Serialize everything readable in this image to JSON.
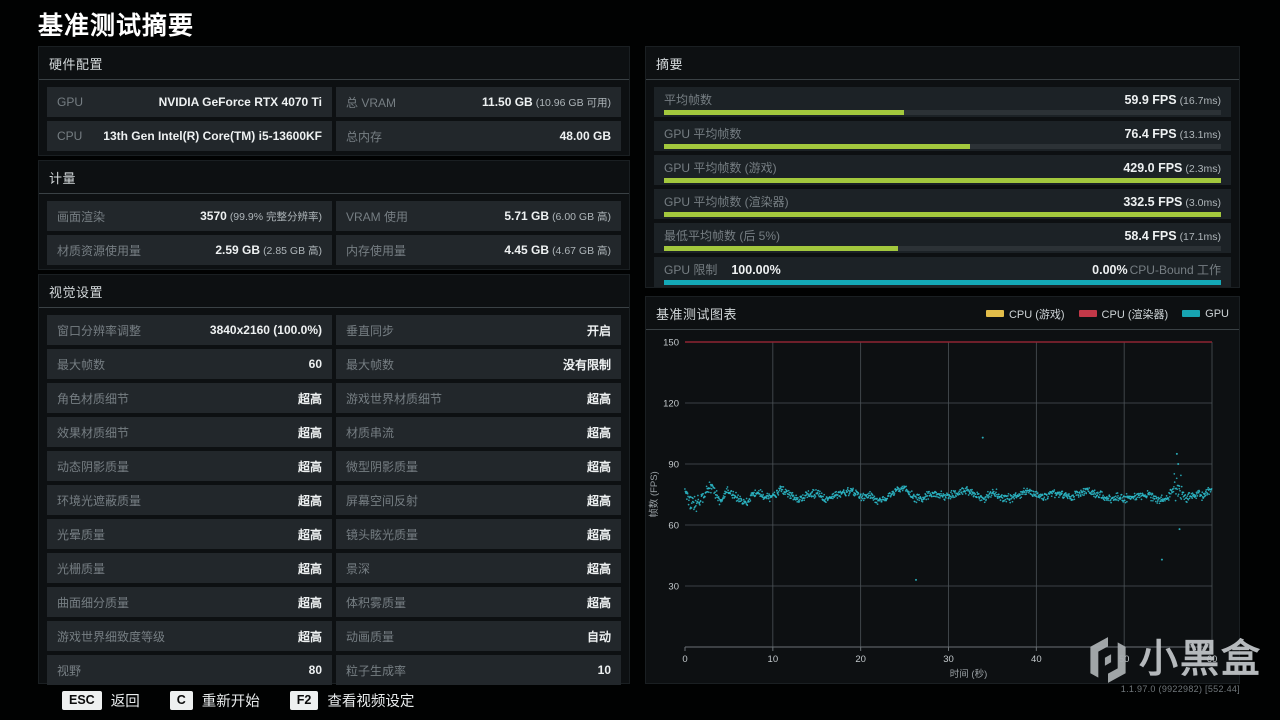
{
  "page_title": "基准测试摘要",
  "colors": {
    "bar_green": "#a3c83d",
    "bar_teal": "#14a9b8",
    "legend_yellow": "#e2bd4a",
    "legend_red": "#c23848",
    "legend_teal": "#17a4b2",
    "chart_cap_line_red": "#8e2433",
    "scatter_teal": "#2cbac8",
    "row_bg": "#22272b",
    "panel_bg": "#0d1012"
  },
  "panels": {
    "hardware": {
      "title": "硬件配置",
      "rows": [
        {
          "label": "GPU",
          "value": "NVIDIA GeForce RTX 4070 Ti",
          "note": ""
        },
        {
          "label": "总 VRAM",
          "value": "11.50 GB",
          "note": "(10.96 GB 可用)"
        },
        {
          "label": "CPU",
          "value": "13th Gen Intel(R) Core(TM) i5-13600KF",
          "note": ""
        },
        {
          "label": "总内存",
          "value": "48.00 GB",
          "note": ""
        }
      ]
    },
    "metrics": {
      "title": "计量",
      "rows": [
        {
          "label": "画面渲染",
          "value": "3570",
          "note": "(99.9% 完整分辨率)"
        },
        {
          "label": "VRAM 使用",
          "value": "5.71 GB",
          "note": "(6.00 GB 高)"
        },
        {
          "label": "材质资源使用量",
          "value": "2.59 GB",
          "note": "(2.85 GB 高)"
        },
        {
          "label": "内存使用量",
          "value": "4.45 GB",
          "note": "(4.67 GB 高)"
        }
      ]
    },
    "visual_settings": {
      "title": "视觉设置",
      "rows": [
        {
          "label": "窗口分辨率调整",
          "value": "3840x2160 (100.0%)",
          "note": ""
        },
        {
          "label": "垂直同步",
          "value": "开启",
          "note": ""
        },
        {
          "label": "最大帧数",
          "value": "60",
          "note": ""
        },
        {
          "label": "最大帧数",
          "value": "没有限制",
          "note": ""
        },
        {
          "label": "角色材质细节",
          "value": "超高",
          "note": ""
        },
        {
          "label": "游戏世界材质细节",
          "value": "超高",
          "note": ""
        },
        {
          "label": "效果材质细节",
          "value": "超高",
          "note": ""
        },
        {
          "label": "材质串流",
          "value": "超高",
          "note": ""
        },
        {
          "label": "动态阴影质量",
          "value": "超高",
          "note": ""
        },
        {
          "label": "微型阴影质量",
          "value": "超高",
          "note": ""
        },
        {
          "label": "环境光遮蔽质量",
          "value": "超高",
          "note": ""
        },
        {
          "label": "屏幕空间反射",
          "value": "超高",
          "note": ""
        },
        {
          "label": "光晕质量",
          "value": "超高",
          "note": ""
        },
        {
          "label": "镜头眩光质量",
          "value": "超高",
          "note": ""
        },
        {
          "label": "光栅质量",
          "value": "超高",
          "note": ""
        },
        {
          "label": "景深",
          "value": "超高",
          "note": ""
        },
        {
          "label": "曲面细分质量",
          "value": "超高",
          "note": ""
        },
        {
          "label": "体积雾质量",
          "value": "超高",
          "note": ""
        },
        {
          "label": "游戏世界细致度等级",
          "value": "超高",
          "note": ""
        },
        {
          "label": "动画质量",
          "value": "自动",
          "note": ""
        },
        {
          "label": "视野",
          "value": "80",
          "note": ""
        },
        {
          "label": "粒子生成率",
          "value": "10",
          "note": ""
        }
      ]
    },
    "summary": {
      "title": "摘要",
      "rows": [
        {
          "label": "平均帧数",
          "value": "59.9 FPS",
          "note": "(16.7ms)",
          "bar_percent": 43,
          "bar_color": "green"
        },
        {
          "label": "GPU 平均帧数",
          "value": "76.4 FPS",
          "note": "(13.1ms)",
          "bar_percent": 55,
          "bar_color": "green"
        },
        {
          "label": "GPU 平均帧数 (游戏)",
          "value": "429.0 FPS",
          "note": "(2.3ms)",
          "bar_percent": 100,
          "bar_color": "green"
        },
        {
          "label": "GPU 平均帧数 (渲染器)",
          "value": "332.5 FPS",
          "note": "(3.0ms)",
          "bar_percent": 100,
          "bar_color": "green"
        },
        {
          "label": "最低平均帧数 (后 5%)",
          "value": "58.4 FPS",
          "note": "(17.1ms)",
          "bar_percent": 42,
          "bar_color": "green"
        }
      ],
      "gpu_limit": {
        "label": "GPU 限制",
        "left_value": "100.00%",
        "right_value": "0.00%",
        "right_label": "CPU-Bound 工作",
        "bar_percent": 100,
        "bar_color": "teal"
      }
    }
  },
  "chart_data": {
    "type": "scatter",
    "title": "基准测试图表",
    "xlabel": "时间 (秒)",
    "ylabel": "帧数 (FPS)",
    "xlim": [
      0,
      60
    ],
    "ylim": [
      0,
      150
    ],
    "xticks": [
      0,
      10,
      20,
      30,
      40,
      50,
      60
    ],
    "yticks": [
      30,
      60,
      90,
      120,
      150
    ],
    "grid": true,
    "legend_position": "top-right",
    "legend": [
      {
        "label": "CPU (游戏)",
        "color": "#e2bd4a"
      },
      {
        "label": "CPU (渲染器)",
        "color": "#c23848"
      },
      {
        "label": "GPU",
        "color": "#17a4b2"
      }
    ],
    "series": [
      {
        "name": "CPU (游戏)",
        "type": "line",
        "color": "#e2bd4a",
        "avg_fps": 429.0,
        "clipped_at": 150,
        "drawn": false
      },
      {
        "name": "CPU (渲染器)",
        "type": "line",
        "color": "#c23848",
        "avg_fps": 332.5,
        "clipped_at": 150,
        "drawn": true
      },
      {
        "name": "GPU",
        "type": "scatter",
        "color": "#2cbac8",
        "avg_fps": 76.4,
        "trend": [
          [
            0,
            77
          ],
          [
            1,
            70
          ],
          [
            2,
            74
          ],
          [
            3,
            79
          ],
          [
            4,
            72
          ],
          [
            5,
            77
          ],
          [
            6,
            73
          ],
          [
            7,
            71
          ],
          [
            8,
            76
          ],
          [
            9,
            74
          ],
          [
            10,
            74
          ],
          [
            11,
            78
          ],
          [
            12,
            75
          ],
          [
            13,
            72
          ],
          [
            14,
            75
          ],
          [
            15,
            76
          ],
          [
            16,
            73
          ],
          [
            17,
            75
          ],
          [
            18,
            76
          ],
          [
            19,
            77
          ],
          [
            20,
            74
          ],
          [
            21,
            75
          ],
          [
            22,
            72
          ],
          [
            23,
            74
          ],
          [
            24,
            77
          ],
          [
            25,
            78
          ],
          [
            26,
            74
          ],
          [
            27,
            73
          ],
          [
            28,
            76
          ],
          [
            29,
            75
          ],
          [
            30,
            74
          ],
          [
            31,
            76
          ],
          [
            32,
            77
          ],
          [
            33,
            75
          ],
          [
            34,
            73
          ],
          [
            35,
            76
          ],
          [
            36,
            74
          ],
          [
            37,
            73
          ],
          [
            38,
            75
          ],
          [
            39,
            77
          ],
          [
            40,
            75
          ],
          [
            41,
            74
          ],
          [
            42,
            76
          ],
          [
            43,
            75
          ],
          [
            44,
            74
          ],
          [
            45,
            76
          ],
          [
            46,
            77
          ],
          [
            47,
            75
          ],
          [
            48,
            73
          ],
          [
            49,
            74
          ],
          [
            50,
            73
          ],
          [
            51,
            74
          ],
          [
            52,
            75
          ],
          [
            53,
            74
          ],
          [
            54,
            72
          ],
          [
            55,
            74
          ],
          [
            56,
            80
          ],
          [
            57,
            73
          ],
          [
            58,
            75
          ],
          [
            59,
            75
          ],
          [
            60,
            77
          ]
        ],
        "outliers": [
          [
            26.3,
            33
          ],
          [
            33.9,
            103
          ],
          [
            54.3,
            43
          ],
          [
            56.0,
            95
          ],
          [
            56.15,
            90
          ],
          [
            56.3,
            58
          ]
        ]
      }
    ]
  },
  "footer": {
    "hints": [
      {
        "key": "ESC",
        "label": "返回"
      },
      {
        "key": "C",
        "label": "重新开始"
      },
      {
        "key": "F2",
        "label": "查看视频设定"
      }
    ]
  },
  "watermark": {
    "text": "小黑盒"
  },
  "version": "1.1.97.0 (9922982) [552.44]"
}
